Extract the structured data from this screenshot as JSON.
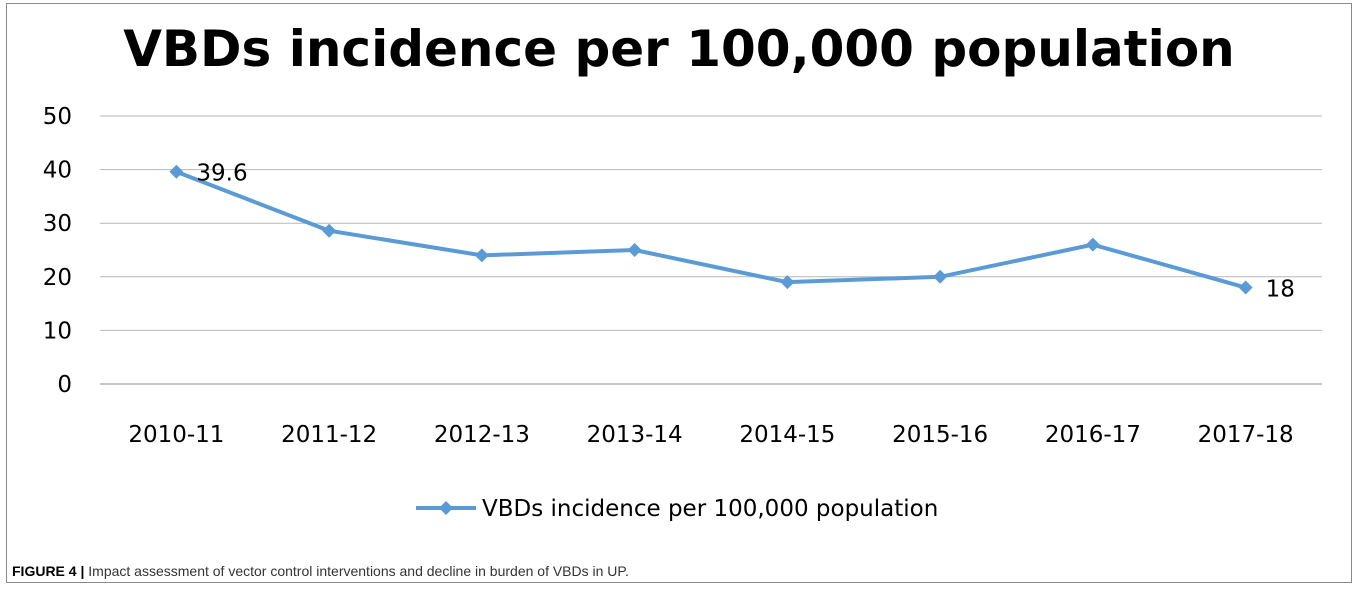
{
  "chart_data": {
    "type": "line",
    "title": "VBDs incidence per 100,000 population",
    "categories": [
      "2010-11",
      "2011-12",
      "2012-13",
      "2013-14",
      "2014-15",
      "2015-16",
      "2016-17",
      "2017-18"
    ],
    "series": [
      {
        "name": "VBDs incidence per 100,000 population",
        "values": [
          39.6,
          28.6,
          24,
          25,
          19,
          20,
          26,
          18
        ],
        "color": "#5b9bd5",
        "marker": "diamond"
      }
    ],
    "data_labels": [
      {
        "index": 0,
        "text": "39.6"
      },
      {
        "index": 7,
        "text": "18"
      }
    ],
    "ylim": [
      0,
      50
    ],
    "yticks": [
      0,
      10,
      20,
      30,
      40,
      50
    ],
    "grid": true,
    "legend_position": "bottom",
    "xlabel": "",
    "ylabel": ""
  },
  "caption": {
    "label": "FIGURE 4 |",
    "text": " Impact assessment of vector control interventions and decline in burden of VBDs in UP."
  }
}
